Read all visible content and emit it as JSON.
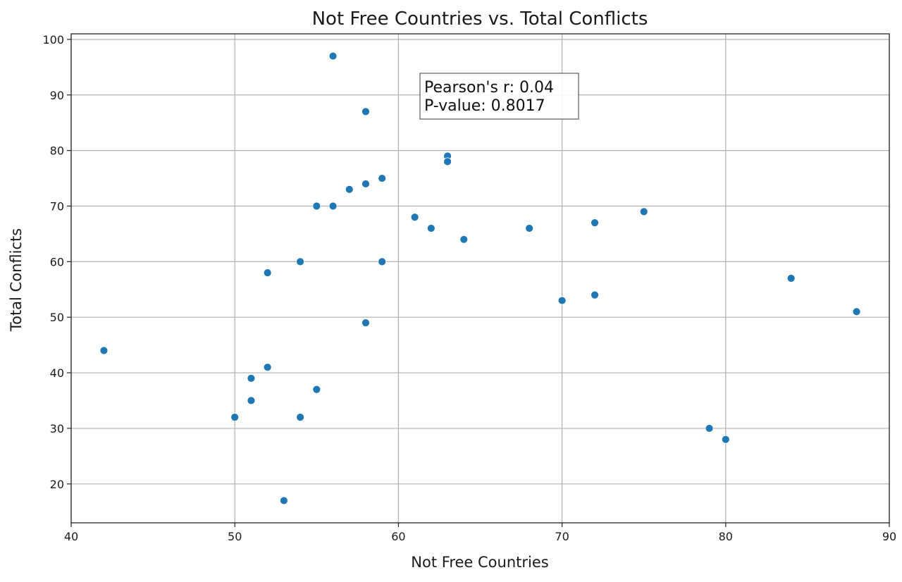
{
  "chart_data": {
    "type": "scatter",
    "title": "Not Free Countries vs. Total Conflicts",
    "xlabel": "Not Free Countries",
    "ylabel": "Total Conflicts",
    "xlim": [
      40,
      90
    ],
    "ylim": [
      13,
      101
    ],
    "x_ticks": [
      40,
      50,
      60,
      70,
      80,
      90
    ],
    "y_ticks": [
      20,
      30,
      40,
      50,
      60,
      70,
      80,
      90,
      100
    ],
    "grid": true,
    "marker_color": "#1f77b4",
    "annotation": {
      "lines": [
        "Pearson's r: 0.04",
        "P-value: 0.8017"
      ]
    },
    "points": [
      {
        "x": 42,
        "y": 44
      },
      {
        "x": 50,
        "y": 32
      },
      {
        "x": 51,
        "y": 39
      },
      {
        "x": 51,
        "y": 35
      },
      {
        "x": 52,
        "y": 58
      },
      {
        "x": 52,
        "y": 41
      },
      {
        "x": 53,
        "y": 17
      },
      {
        "x": 54,
        "y": 60
      },
      {
        "x": 54,
        "y": 32
      },
      {
        "x": 55,
        "y": 70
      },
      {
        "x": 55,
        "y": 37
      },
      {
        "x": 56,
        "y": 97
      },
      {
        "x": 56,
        "y": 70
      },
      {
        "x": 57,
        "y": 73
      },
      {
        "x": 58,
        "y": 87
      },
      {
        "x": 58,
        "y": 74
      },
      {
        "x": 58,
        "y": 49
      },
      {
        "x": 59,
        "y": 75
      },
      {
        "x": 59,
        "y": 60
      },
      {
        "x": 61,
        "y": 68
      },
      {
        "x": 62,
        "y": 66
      },
      {
        "x": 63,
        "y": 79
      },
      {
        "x": 63,
        "y": 78
      },
      {
        "x": 64,
        "y": 64
      },
      {
        "x": 68,
        "y": 66
      },
      {
        "x": 70,
        "y": 53
      },
      {
        "x": 72,
        "y": 67
      },
      {
        "x": 72,
        "y": 54
      },
      {
        "x": 75,
        "y": 69
      },
      {
        "x": 79,
        "y": 30
      },
      {
        "x": 80,
        "y": 28
      },
      {
        "x": 84,
        "y": 57
      },
      {
        "x": 88,
        "y": 51
      }
    ]
  }
}
